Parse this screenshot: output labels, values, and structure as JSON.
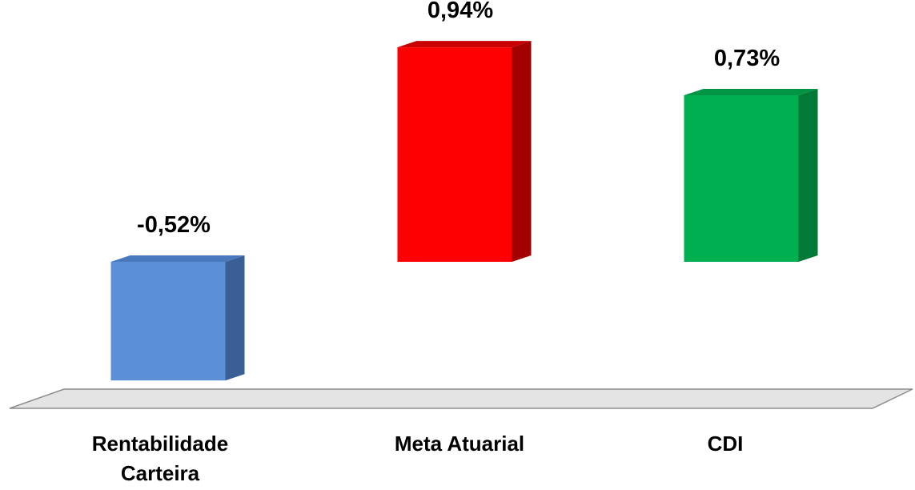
{
  "chart_data": {
    "type": "bar",
    "style": "3d-column",
    "title": "",
    "xlabel": "",
    "ylabel": "",
    "categories": [
      [
        "Rentabilidade",
        "Carteira"
      ],
      [
        "Meta Atuarial"
      ],
      [
        "CDI"
      ]
    ],
    "values": [
      -0.52,
      0.94,
      0.73
    ],
    "value_labels": [
      "-0,52%",
      "0,94%",
      "0,73%"
    ],
    "colors": [
      "#5b8fd8",
      "#ff0000",
      "#00b050"
    ],
    "side_colors": [
      "#3a5f96",
      "#a30000",
      "#007a36"
    ],
    "top_colors": [
      "#4a78bd",
      "#c80000",
      "#009444"
    ],
    "floor_color": "#e4e4e4",
    "grid": false,
    "legend": "none"
  }
}
